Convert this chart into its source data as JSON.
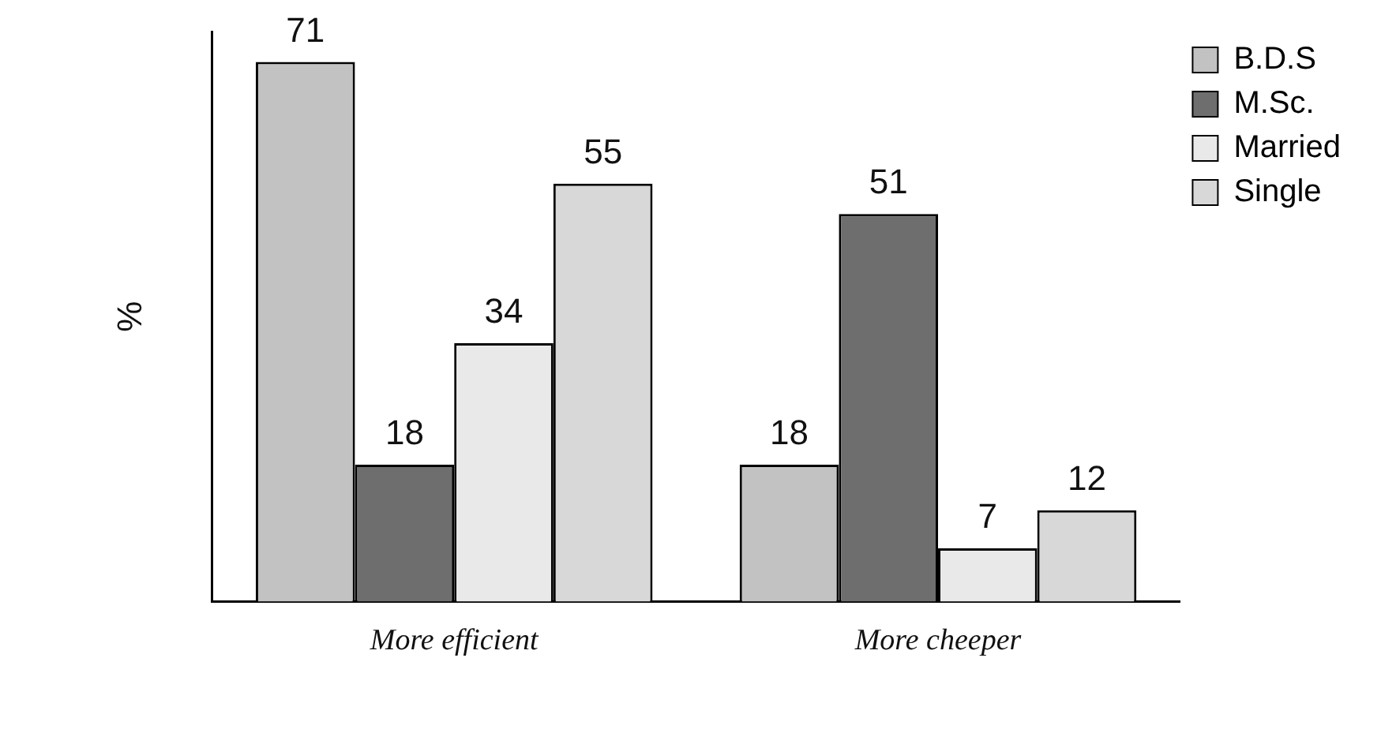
{
  "chart_data": {
    "type": "bar",
    "ylabel": "%",
    "categories": [
      "More efficient",
      "More cheeper"
    ],
    "series": [
      {
        "name": "B.D.S",
        "color": "#c2c2c2",
        "values": [
          71,
          18
        ]
      },
      {
        "name": "M.Sc.",
        "color": "#6e6e6e",
        "values": [
          18,
          51
        ]
      },
      {
        "name": "Married",
        "color": "#e9e9e9",
        "values": [
          34,
          7
        ]
      },
      {
        "name": "Single",
        "color": "#d8d8d8",
        "values": [
          55,
          12
        ]
      }
    ],
    "ylim": [
      0,
      75
    ],
    "tick_labels": "x",
    "data_labels": true,
    "legend": "right",
    "grid": false
  }
}
